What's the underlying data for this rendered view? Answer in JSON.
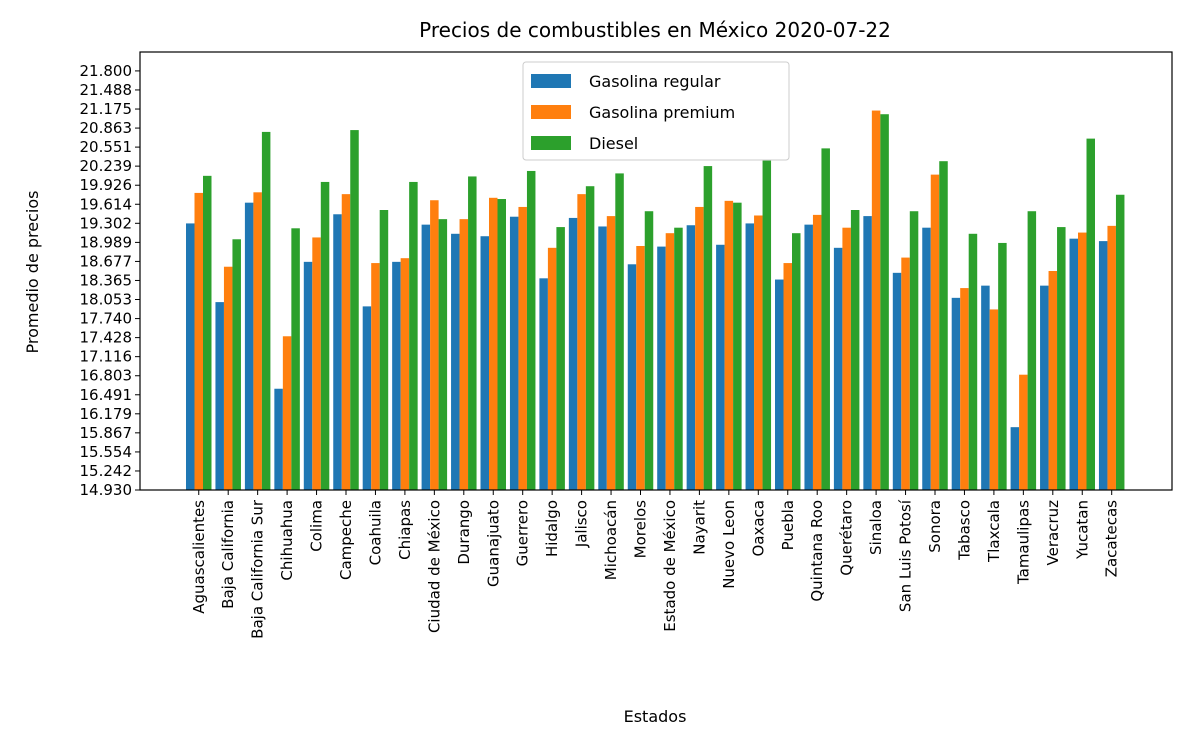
{
  "chart_data": {
    "type": "bar",
    "title": "Precios de combustibles en México 2020-07-22",
    "xlabel": "Estados",
    "ylabel": "Promedio de precios",
    "ylim": [
      14.93,
      22.11
    ],
    "yticks": [
      "14.930",
      "15.242",
      "15.554",
      "15.867",
      "16.179",
      "16.491",
      "16.803",
      "17.116",
      "17.428",
      "17.740",
      "18.053",
      "18.365",
      "18.677",
      "18.989",
      "19.302",
      "19.614",
      "19.926",
      "20.239",
      "20.551",
      "20.863",
      "21.175",
      "21.488",
      "21.800"
    ],
    "legend_position": "top-center",
    "grid": false,
    "categories": [
      "Aguascalientes",
      "Baja California",
      "Baja California Sur",
      "Chihuahua",
      "Colima",
      "Campeche",
      "Coahuila",
      "Chiapas",
      "Ciudad de México",
      "Durango",
      "Guanajuato",
      "Guerrero",
      "Hidalgo",
      "Jalisco",
      "Michoacán",
      "Morelos",
      "Estado de México",
      "Nayarit",
      "Nuevo Leon",
      "Oaxaca",
      "Puebla",
      "Quintana Roo",
      "Querétaro",
      "Sinaloa",
      "San Luis Potosí",
      "Sonora",
      "Tabasco",
      "Tlaxcala",
      "Tamaulipas",
      "Veracruz",
      "Yucatan",
      "Zacatecas"
    ],
    "series": [
      {
        "name": "Gasolina regular",
        "color": "#1f77b4",
        "values": [
          19.3,
          18.01,
          19.64,
          16.59,
          18.67,
          19.45,
          17.94,
          18.67,
          19.28,
          19.13,
          19.09,
          19.41,
          18.4,
          19.39,
          19.25,
          18.63,
          18.92,
          19.27,
          18.95,
          19.3,
          18.38,
          19.28,
          18.9,
          19.42,
          18.49,
          19.23,
          18.08,
          18.28,
          15.96,
          18.28,
          19.05,
          19.01
        ]
      },
      {
        "name": "Gasolina premium",
        "color": "#ff7f0e",
        "values": [
          19.8,
          18.59,
          19.81,
          17.45,
          19.07,
          19.78,
          18.65,
          18.73,
          19.68,
          19.37,
          19.72,
          19.57,
          18.9,
          19.78,
          19.42,
          18.93,
          19.14,
          19.57,
          19.67,
          19.43,
          18.65,
          19.44,
          19.23,
          21.15,
          18.74,
          20.1,
          18.24,
          17.89,
          16.82,
          18.52,
          19.15,
          19.26
        ]
      },
      {
        "name": "Diesel",
        "color": "#2ca02c",
        "values": [
          20.08,
          19.04,
          20.8,
          19.22,
          19.98,
          20.83,
          19.52,
          19.98,
          19.37,
          20.07,
          19.7,
          20.16,
          19.24,
          19.91,
          20.12,
          19.5,
          19.23,
          20.24,
          19.64,
          20.33,
          19.14,
          20.53,
          19.52,
          21.09,
          19.5,
          20.32,
          19.13,
          18.98,
          19.5,
          19.24,
          20.69,
          19.77
        ]
      }
    ]
  }
}
